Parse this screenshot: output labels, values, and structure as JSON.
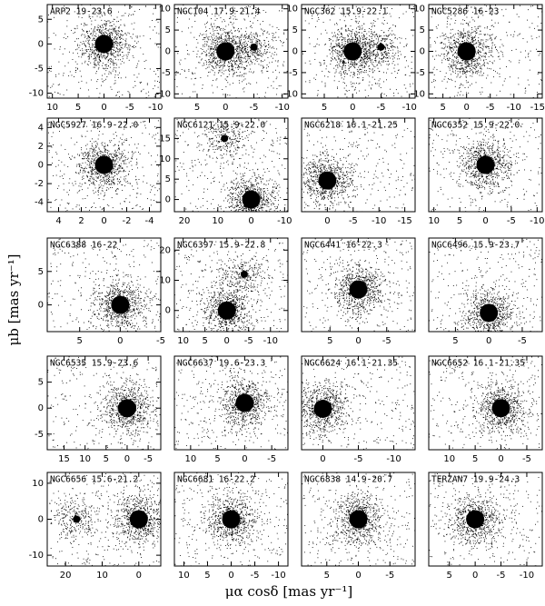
{
  "x_label": "μα cosδ [mas yr⁻¹]",
  "y_label": "μb [mas yr⁻¹]",
  "chart_data": [
    {
      "type": "scatter",
      "title": "ARP2 19-23.6",
      "x": [
        0
      ],
      "y": [
        0
      ],
      "xlim": [
        11,
        -11
      ],
      "xticks": [
        10,
        5,
        0,
        -5,
        -10
      ],
      "ylim": [
        -11,
        8
      ],
      "yticks": [
        5,
        0,
        -5,
        -10
      ]
    },
    {
      "type": "scatter",
      "title": "NGC104 17.9-21.4",
      "x": [
        0,
        -5
      ],
      "y": [
        0,
        1
      ],
      "xlim": [
        9,
        -11
      ],
      "xticks": [
        5,
        0,
        -5,
        -10
      ],
      "ylim": [
        -11,
        11
      ],
      "yticks": [
        10,
        5,
        0,
        -5,
        -10
      ]
    },
    {
      "type": "scatter",
      "title": "NGC362 15.9-22.1",
      "x": [
        0,
        -5
      ],
      "y": [
        0,
        1
      ],
      "xlim": [
        9,
        -11
      ],
      "xticks": [
        5,
        0,
        -5,
        -10
      ],
      "ylim": [
        -11,
        11
      ],
      "yticks": [
        10,
        5,
        0,
        -5,
        -10
      ]
    },
    {
      "type": "scatter",
      "title": "NGC5286 16-23",
      "x": [
        0
      ],
      "y": [
        0
      ],
      "xlim": [
        8,
        -16
      ],
      "xticks": [
        5,
        0,
        -5,
        -10,
        -15
      ],
      "ylim": [
        -11,
        11
      ],
      "yticks": [
        10,
        5,
        0,
        -5,
        -10
      ]
    },
    {
      "type": "scatter",
      "title": "NGC5927 16.9-22.0",
      "x": [
        0
      ],
      "y": [
        0
      ],
      "xlim": [
        5,
        -5
      ],
      "xticks": [
        4,
        2,
        0,
        -2,
        -4
      ],
      "ylim": [
        -5,
        5
      ],
      "yticks": [
        4,
        2,
        0,
        -2,
        -4
      ]
    },
    {
      "type": "scatter",
      "title": "NGC6121 15.9-22.0",
      "x": [
        0,
        8
      ],
      "y": [
        0,
        15
      ],
      "xlim": [
        23,
        -11
      ],
      "xticks": [
        20,
        10,
        0,
        -10
      ],
      "ylim": [
        -3,
        20
      ],
      "yticks": [
        15,
        10,
        5,
        0
      ]
    },
    {
      "type": "scatter",
      "title": "NGC6218 16.1-21.25",
      "x": [
        0
      ],
      "y": [
        0
      ],
      "xlim": [
        5,
        -17
      ],
      "xticks": [
        0,
        -5,
        -10,
        -15
      ],
      "ylim": [
        -6,
        12
      ]
    },
    {
      "type": "scatter",
      "title": "NGC6352 15.9-22.0",
      "x": [
        0
      ],
      "y": [
        0
      ],
      "xlim": [
        11,
        -11
      ],
      "xticks": [
        10,
        5,
        0,
        -5,
        -10
      ],
      "ylim": [
        -9,
        9
      ]
    },
    {
      "type": "scatter",
      "title": "NGC6388 16-22",
      "x": [
        0
      ],
      "y": [
        0
      ],
      "xlim": [
        9,
        -5
      ],
      "xticks": [
        5,
        0,
        -5
      ],
      "ylim": [
        -4,
        10
      ],
      "yticks": [
        5,
        0
      ]
    },
    {
      "type": "scatter",
      "title": "NGC6397 15.9-22.8",
      "x": [
        0,
        -4
      ],
      "y": [
        0,
        12
      ],
      "xlim": [
        12,
        -14
      ],
      "xticks": [
        10,
        5,
        0,
        -5,
        -10
      ],
      "ylim": [
        -7,
        24
      ],
      "yticks": [
        20,
        10,
        0
      ]
    },
    {
      "type": "scatter",
      "title": "NGC6441 16-22.3",
      "x": [
        0
      ],
      "y": [
        0
      ],
      "xlim": [
        10,
        -10
      ],
      "xticks": [
        5,
        0,
        -5
      ],
      "ylim": [
        -9,
        11
      ]
    },
    {
      "type": "scatter",
      "title": "NGC6496 15.9-23.7",
      "x": [
        0
      ],
      "y": [
        -2
      ],
      "xlim": [
        9,
        -8
      ],
      "xticks": [
        5,
        0,
        -5
      ],
      "ylim": [
        -5,
        10
      ]
    },
    {
      "type": "scatter",
      "title": "NGC6535 15.9-23.6",
      "x": [
        0
      ],
      "y": [
        0
      ],
      "xlim": [
        19,
        -8
      ],
      "xticks": [
        15,
        10,
        5,
        0,
        -5
      ],
      "ylim": [
        -8,
        10
      ],
      "yticks": [
        5,
        0,
        -5
      ]
    },
    {
      "type": "scatter",
      "title": "NGC6637 19.6-23.3",
      "x": [
        0
      ],
      "y": [
        0
      ],
      "xlim": [
        13,
        -8
      ],
      "xticks": [
        10,
        5,
        0,
        -5
      ],
      "ylim": [
        -9,
        9
      ]
    },
    {
      "type": "scatter",
      "title": "NGC6624 16.1-21.35",
      "x": [
        0
      ],
      "y": [
        0
      ],
      "xlim": [
        3,
        -13
      ],
      "xticks": [
        0,
        -5,
        -10
      ],
      "ylim": [
        -7,
        9
      ]
    },
    {
      "type": "scatter",
      "title": "NGC6652 16.1-21.35",
      "x": [
        0
      ],
      "y": [
        0
      ],
      "xlim": [
        14,
        -8
      ],
      "xticks": [
        10,
        5,
        0,
        -5
      ],
      "ylim": [
        -8,
        10
      ]
    },
    {
      "type": "scatter",
      "title": "NGC6656 15.6-21.2",
      "x": [
        0,
        17
      ],
      "y": [
        0,
        0
      ],
      "xlim": [
        25,
        -6
      ],
      "xticks": [
        20,
        10,
        0
      ],
      "ylim": [
        -13,
        13
      ],
      "yticks": [
        10,
        0,
        -10
      ]
    },
    {
      "type": "scatter",
      "title": "NGC6681 16-22.2",
      "x": [
        0
      ],
      "y": [
        0
      ],
      "xlim": [
        12,
        -12
      ],
      "xticks": [
        10,
        5,
        0,
        -5,
        -10
      ],
      "ylim": [
        -13,
        13
      ]
    },
    {
      "type": "scatter",
      "title": "NGC6838 14.9-20.7",
      "x": [
        0
      ],
      "y": [
        0
      ],
      "xlim": [
        9,
        -9
      ],
      "xticks": [
        5,
        0,
        -5
      ],
      "ylim": [
        -13,
        13
      ]
    },
    {
      "type": "scatter",
      "title": "TERZAN7 19.9-24.3",
      "x": [
        0
      ],
      "y": [
        0
      ],
      "xlim": [
        9,
        -13
      ],
      "xticks": [
        5,
        0,
        -5,
        -10
      ],
      "ylim": [
        -13,
        13
      ]
    }
  ]
}
